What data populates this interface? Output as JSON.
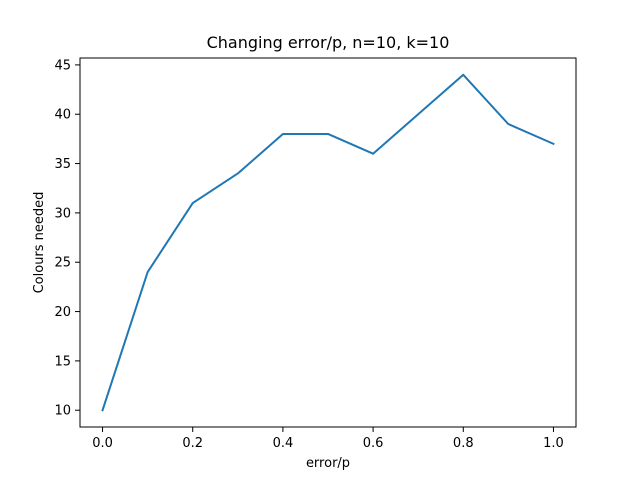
{
  "chart_data": {
    "type": "line",
    "title": "Changing error/p, n=10, k=10",
    "xlabel": "error/p",
    "ylabel": "Colours needed",
    "x": [
      0.0,
      0.1,
      0.2,
      0.3,
      0.4,
      0.5,
      0.6,
      0.7,
      0.8,
      0.9,
      1.0
    ],
    "series": [
      {
        "values": [
          10,
          24,
          31,
          34,
          38,
          38,
          36,
          40,
          44,
          39,
          37
        ],
        "color": "#1f77b4"
      }
    ],
    "xlim": [
      -0.05,
      1.05
    ],
    "ylim": [
      8.3,
      45.7
    ],
    "xticks": [
      0.0,
      0.2,
      0.4,
      0.6,
      0.8,
      1.0
    ],
    "xtick_labels": [
      "0.0",
      "0.2",
      "0.4",
      "0.6",
      "0.8",
      "1.0"
    ],
    "yticks": [
      10,
      15,
      20,
      25,
      30,
      35,
      40,
      45
    ],
    "ytick_labels": [
      "10",
      "15",
      "20",
      "25",
      "30",
      "35",
      "40",
      "45"
    ],
    "grid": false,
    "legend": "none"
  }
}
